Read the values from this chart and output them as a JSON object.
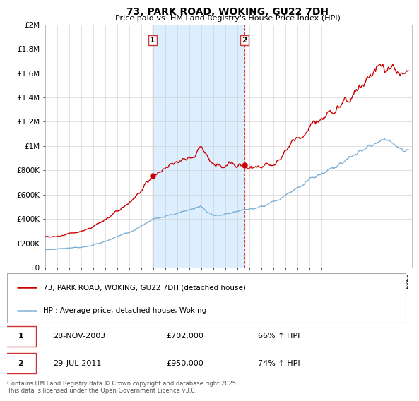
{
  "title": "73, PARK ROAD, WOKING, GU22 7DH",
  "subtitle": "Price paid vs. HM Land Registry's House Price Index (HPI)",
  "ylim": [
    0,
    2000000
  ],
  "yticks": [
    0,
    200000,
    400000,
    600000,
    800000,
    1000000,
    1200000,
    1400000,
    1600000,
    1800000,
    2000000
  ],
  "ytick_labels": [
    "£0",
    "£200K",
    "£400K",
    "£600K",
    "£800K",
    "£1M",
    "£1.2M",
    "£1.4M",
    "£1.6M",
    "£1.8M",
    "£2M"
  ],
  "sale1_date": 2003.91,
  "sale1_price": 702000,
  "sale1_display": "28-NOV-2003",
  "sale1_amount": "£702,000",
  "sale1_hpi": "66% ↑ HPI",
  "sale2_date": 2011.58,
  "sale2_price": 950000,
  "sale2_display": "29-JUL-2011",
  "sale2_amount": "£950,000",
  "sale2_hpi": "74% ↑ HPI",
  "red_color": "#cc0000",
  "blue_color": "#7bafd4",
  "shade_color": "#ddeeff",
  "grid_color": "#cccccc",
  "legend_label_red": "73, PARK ROAD, WOKING, GU22 7DH (detached house)",
  "legend_label_blue": "HPI: Average price, detached house, Woking",
  "footer": "Contains HM Land Registry data © Crown copyright and database right 2025.\nThis data is licensed under the Open Government Licence v3.0."
}
